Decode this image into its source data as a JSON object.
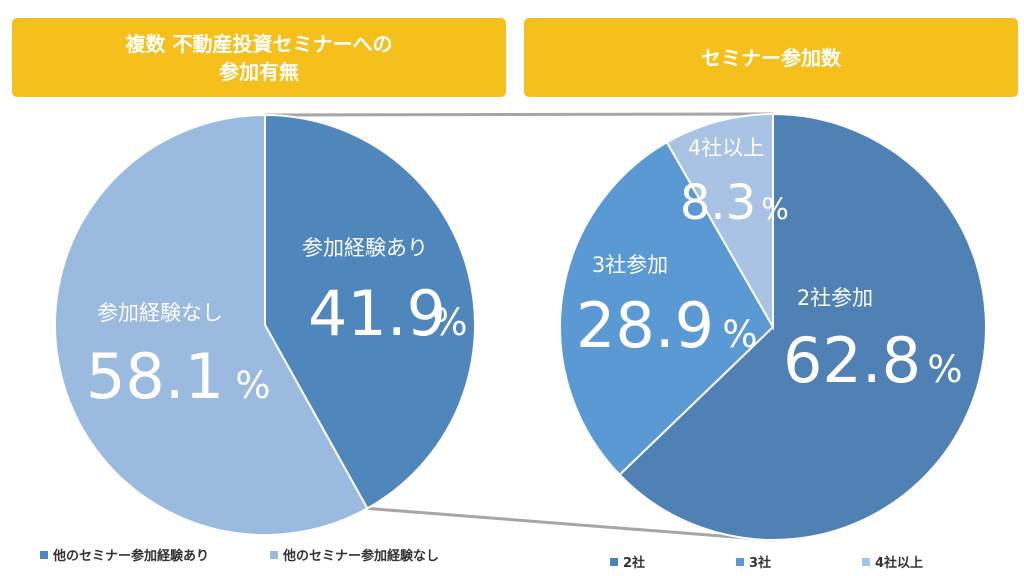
{
  "colors": {
    "banner": "#f5c01b",
    "experience_yes": "#4f86bb",
    "experience_no": "#9bbae0",
    "two_companies": "#4f81b4",
    "three_companies": "#5b99d5",
    "four_plus": "#a8c3e4",
    "connector": "#a6a6a6"
  },
  "banners": {
    "left": {
      "line1": "複数 不動産投資セミナーへの",
      "line2": "参加有無"
    },
    "right": {
      "line1": "セミナー参加数"
    }
  },
  "chart_data": [
    {
      "type": "pie",
      "title": "複数 不動産投資セミナーへの参加有無",
      "slices": [
        {
          "label": "参加経験あり",
          "value": 41.9,
          "value_text": "41.9",
          "unit": "%",
          "legend": "他のセミナー参加経験あり",
          "color": "#4f86bb"
        },
        {
          "label": "参加経験なし",
          "value": 58.1,
          "value_text": "58.1",
          "unit": "%",
          "legend": "他のセミナー参加経験なし",
          "color": "#9bbae0"
        }
      ],
      "start_angle": "12 o'clock, clockwise",
      "legend_position": "bottom"
    },
    {
      "type": "pie",
      "title": "セミナー参加数",
      "slices": [
        {
          "label": "2社参加",
          "value": 62.8,
          "value_text": "62.8",
          "unit": "%",
          "legend": "2社",
          "color": "#4f81b4"
        },
        {
          "label": "3社参加",
          "value": 28.9,
          "value_text": "28.9",
          "unit": "%",
          "legend": "3社",
          "color": "#5b99d5"
        },
        {
          "label": "4社以上",
          "value": 8.3,
          "value_text": "8.3",
          "unit": "%",
          "legend": "4社以上",
          "color": "#a8c3e4"
        }
      ],
      "start_angle": "12 o'clock, clockwise",
      "legend_position": "bottom"
    }
  ]
}
